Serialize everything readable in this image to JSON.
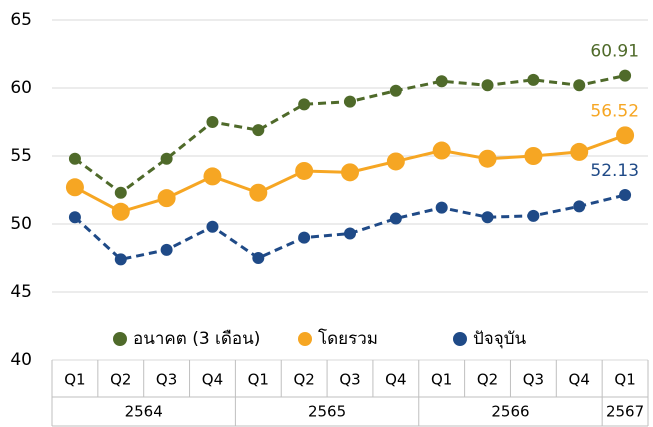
{
  "chart_data": {
    "type": "line",
    "categories": [
      "Q1",
      "Q2",
      "Q3",
      "Q4",
      "Q1",
      "Q2",
      "Q3",
      "Q4",
      "Q1",
      "Q2",
      "Q3",
      "Q4",
      "Q1"
    ],
    "years": [
      "2564",
      "2565",
      "2566",
      "2567"
    ],
    "series": [
      {
        "name": "อนาคต (3 เดือน)",
        "color": "#4f6a2a",
        "dashed": true,
        "values": [
          54.8,
          52.3,
          54.8,
          57.5,
          56.9,
          58.8,
          59.0,
          59.8,
          60.5,
          60.2,
          60.6,
          60.2,
          60.91
        ]
      },
      {
        "name": "โดยรวม",
        "color": "#f6a623",
        "dashed": false,
        "values": [
          52.7,
          50.9,
          51.9,
          53.5,
          52.3,
          53.9,
          53.8,
          54.6,
          55.4,
          54.8,
          55.0,
          55.3,
          56.52
        ]
      },
      {
        "name": "ปัจจุบัน",
        "color": "#1f4a87",
        "dashed": true,
        "values": [
          50.5,
          47.4,
          48.1,
          49.8,
          47.5,
          49.0,
          49.3,
          50.4,
          51.2,
          50.5,
          50.6,
          51.3,
          52.13
        ]
      }
    ],
    "ylim": [
      40,
      65
    ],
    "yticks": [
      40,
      45,
      50,
      55,
      60,
      65
    ],
    "grid": true,
    "legend": "bottom"
  }
}
